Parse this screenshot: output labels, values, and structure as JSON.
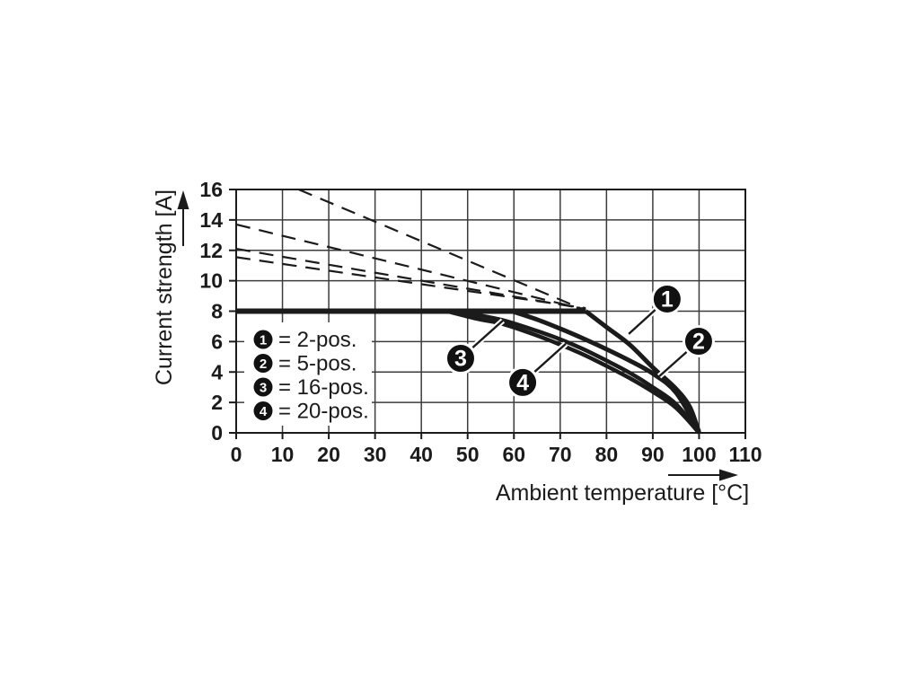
{
  "figure": {
    "background": "#ffffff",
    "ink": "#1b1b1b",
    "grid_color": "#3c3c3c",
    "callout_fill": "#111111",
    "callout_text_color": "#ffffff"
  },
  "chart_data": {
    "type": "line",
    "title": "",
    "xlabel": "Ambient temperature [°C]",
    "ylabel": "Current strength [A]",
    "xlim": [
      0,
      110
    ],
    "ylim": [
      0,
      16
    ],
    "xticks": [
      0,
      10,
      20,
      30,
      40,
      50,
      60,
      70,
      80,
      90,
      100,
      110
    ],
    "yticks": [
      0,
      2,
      4,
      6,
      8,
      10,
      12,
      14,
      16
    ],
    "grid": true,
    "legend_position": "lower-left-inside",
    "legend": [
      {
        "marker": "1",
        "label": "= 2-pos."
      },
      {
        "marker": "2",
        "label": "= 5-pos."
      },
      {
        "marker": "3",
        "label": "= 16-pos."
      },
      {
        "marker": "4",
        "label": "= 20-pos."
      }
    ],
    "series": [
      {
        "name": "rated-current-limit-8A",
        "style": "solid",
        "width": 6,
        "points": [
          [
            0,
            8
          ],
          [
            75.5,
            8
          ]
        ]
      },
      {
        "name": "curve-1-2-pos",
        "style": "solid",
        "width": 5,
        "points": [
          [
            75.5,
            8
          ],
          [
            80,
            6.95
          ],
          [
            85,
            5.8
          ],
          [
            90,
            4.3
          ],
          [
            95,
            2.9
          ],
          [
            98,
            1.7
          ],
          [
            100,
            0
          ]
        ]
      },
      {
        "name": "curve-2-5-pos",
        "style": "solid",
        "width": 5,
        "points": [
          [
            59.5,
            8
          ],
          [
            65,
            7.45
          ],
          [
            70,
            6.85
          ],
          [
            75,
            6.2
          ],
          [
            80,
            5.5
          ],
          [
            85,
            4.75
          ],
          [
            90,
            3.9
          ],
          [
            95,
            2.65
          ],
          [
            100,
            0.1
          ]
        ]
      },
      {
        "name": "curve-3-16-pos",
        "style": "solid",
        "width": 4.5,
        "points": [
          [
            46.5,
            8
          ],
          [
            52,
            7.75
          ],
          [
            57.7,
            7.4
          ],
          [
            65,
            6.7
          ],
          [
            70,
            6.15
          ],
          [
            75,
            5.5
          ],
          [
            80,
            4.75
          ],
          [
            85,
            3.95
          ],
          [
            90,
            3.0
          ],
          [
            95,
            1.9
          ],
          [
            100,
            0.05
          ]
        ]
      },
      {
        "name": "curve-4-20-pos",
        "style": "solid",
        "width": 4.5,
        "points": [
          [
            45.5,
            8
          ],
          [
            52,
            7.5
          ],
          [
            57.7,
            7.15
          ],
          [
            65,
            6.4
          ],
          [
            70,
            5.8
          ],
          [
            75,
            5.15
          ],
          [
            80,
            4.4
          ],
          [
            85,
            3.6
          ],
          [
            90,
            2.7
          ],
          [
            95,
            1.65
          ],
          [
            100,
            0
          ]
        ]
      },
      {
        "name": "derating-2-pos-unlimited",
        "style": "dashed",
        "width": 2.2,
        "points": [
          [
            13.5,
            16
          ],
          [
            75.5,
            8.05
          ]
        ]
      },
      {
        "name": "derating-5-pos-unlimited",
        "style": "dashed",
        "width": 2.2,
        "points": [
          [
            0,
            13.7
          ],
          [
            75.5,
            8.1
          ]
        ]
      },
      {
        "name": "derating-16-pos-unlimited",
        "style": "dashed",
        "width": 2.2,
        "points": [
          [
            0,
            12.1
          ],
          [
            75.5,
            8.15
          ]
        ]
      },
      {
        "name": "derating-20-pos-unlimited",
        "style": "dashed",
        "width": 2.2,
        "points": [
          [
            0,
            11.55
          ],
          [
            75.5,
            8.2
          ]
        ]
      }
    ],
    "callouts": [
      {
        "label": "1",
        "circle": [
          93.1,
          8.8
        ],
        "tip": [
          84.8,
          6.5
        ]
      },
      {
        "label": "2",
        "circle": [
          99.9,
          6.02
        ],
        "tip": [
          91.4,
          3.72
        ]
      },
      {
        "label": "3",
        "circle": [
          48.5,
          4.9
        ],
        "tip": [
          57.6,
          7.38
        ]
      },
      {
        "label": "4",
        "circle": [
          61.9,
          3.31
        ],
        "tip": [
          71.2,
          5.85
        ]
      }
    ]
  }
}
